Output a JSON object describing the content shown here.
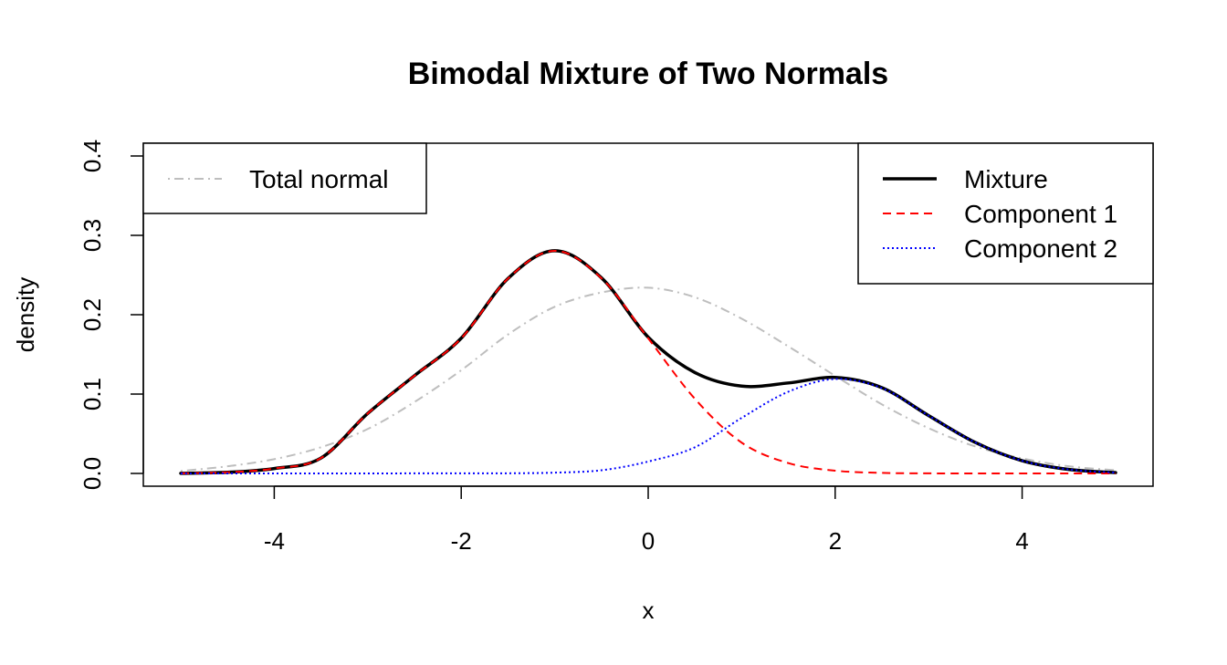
{
  "chart_data": {
    "type": "line",
    "title": "Bimodal Mixture of Two Normals",
    "xlabel": "x",
    "ylabel": "density",
    "xlim": [
      -5,
      5
    ],
    "ylim": [
      0,
      0.4
    ],
    "x_ticks": [
      "-4",
      "-2",
      "0",
      "2",
      "4"
    ],
    "y_ticks": [
      "0.0",
      "0.1",
      "0.2",
      "0.3",
      "0.4"
    ],
    "grid": false,
    "x": [
      -5,
      -4.5,
      -4,
      -3.5,
      -3,
      -2.5,
      -2,
      -1.5,
      -1,
      -0.5,
      0,
      0.5,
      1,
      1.5,
      2,
      2.5,
      3,
      3.5,
      4,
      4.5,
      5
    ],
    "series": [
      {
        "name": "Mixture",
        "color": "#000000",
        "dash": "solid",
        "values": [
          0.0002,
          0.0014,
          0.0062,
          0.0194,
          0.0756,
          0.1232,
          0.1704,
          0.2456,
          0.2806,
          0.2465,
          0.1717,
          0.1271,
          0.11,
          0.114,
          0.121,
          0.1081,
          0.0729,
          0.039,
          0.016,
          0.005,
          0.001
        ]
      },
      {
        "name": "Component 1",
        "color": "#ff0000",
        "dash": "dashed",
        "values": [
          0.0002,
          0.0014,
          0.0062,
          0.0194,
          0.0756,
          0.1231,
          0.1703,
          0.2455,
          0.2805,
          0.246,
          0.1703,
          0.094,
          0.0388,
          0.013,
          0.0035,
          0.0007,
          0.0001,
          0.0,
          0.0,
          0.0,
          0.0
        ]
      },
      {
        "name": "Component 2",
        "color": "#0000ff",
        "dash": "dotted",
        "values": [
          0.0,
          0.0,
          0.0,
          0.0,
          0.0,
          0.0001,
          0.0001,
          0.0002,
          0.001,
          0.004,
          0.015,
          0.033,
          0.07,
          0.103,
          0.119,
          0.1075,
          0.0728,
          0.039,
          0.016,
          0.005,
          0.001
        ]
      },
      {
        "name": "Total normal",
        "color": "#bebebe",
        "dash": "dotdash",
        "values": [
          0.003,
          0.009,
          0.018,
          0.033,
          0.056,
          0.09,
          0.13,
          0.175,
          0.21,
          0.228,
          0.234,
          0.222,
          0.195,
          0.16,
          0.123,
          0.087,
          0.057,
          0.034,
          0.019,
          0.009,
          0.004
        ]
      }
    ],
    "legend_left": {
      "placement": "top-left",
      "entries": [
        {
          "label": "Total normal",
          "color": "#bebebe",
          "dash": "dotdash"
        }
      ]
    },
    "legend_right": {
      "placement": "top-right",
      "entries": [
        {
          "label": "Mixture",
          "color": "#000000",
          "dash": "solid"
        },
        {
          "label": "Component 1",
          "color": "#ff0000",
          "dash": "dashed"
        },
        {
          "label": "Component 2",
          "color": "#0000ff",
          "dash": "dotted"
        }
      ]
    }
  }
}
